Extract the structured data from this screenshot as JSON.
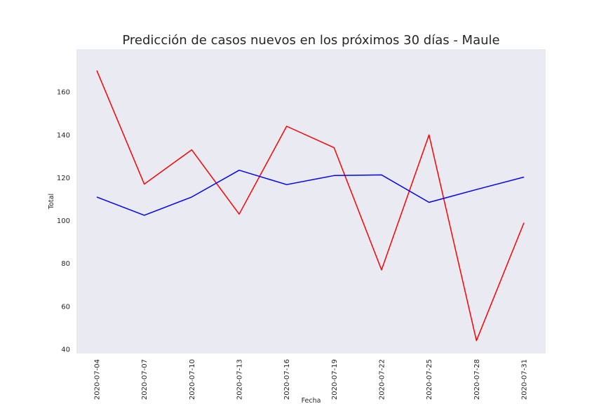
{
  "chart_data": {
    "type": "line",
    "title": "Predicción de casos nuevos en los próximos 30 días - Maule",
    "xlabel": "Fecha",
    "ylabel": "Total",
    "x": [
      "2020-07-04",
      "2020-07-07",
      "2020-07-10",
      "2020-07-13",
      "2020-07-16",
      "2020-07-19",
      "2020-07-22",
      "2020-07-25",
      "2020-07-28",
      "2020-07-31"
    ],
    "ylim": [
      38,
      180
    ],
    "yticks": [
      40,
      60,
      80,
      100,
      120,
      140,
      160
    ],
    "grid": false,
    "legend": "none",
    "background": "#eaeaf2",
    "series": [
      {
        "color": "#ff0000",
        "values": [
          170,
          117,
          133,
          103,
          144,
          134,
          77,
          140,
          44,
          99
        ]
      },
      {
        "color": "#0000ff",
        "values": [
          111,
          102.5,
          111,
          123.5,
          116.8,
          121,
          121.3,
          108.5,
          114.5,
          120.3
        ]
      }
    ]
  }
}
